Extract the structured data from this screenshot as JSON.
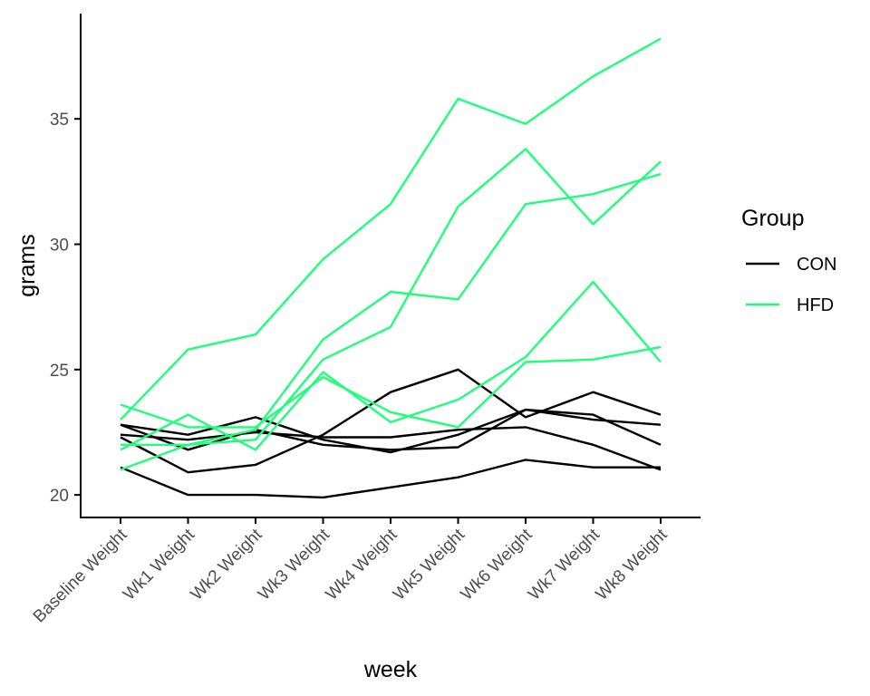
{
  "chart_data": {
    "type": "line",
    "xlabel": "week",
    "ylabel": "grams",
    "categories": [
      "Baseline Weight",
      "Wk1 Weight",
      "Wk2 Weight",
      "Wk3 Weight",
      "Wk4 Weight",
      "Wk5 Weight",
      "Wk6 Weight",
      "Wk7 Weight",
      "Wk8 Weight"
    ],
    "yticks": [
      "20",
      "25",
      "30",
      "35"
    ],
    "ylim": [
      19.1,
      39.2
    ],
    "grid": false,
    "legend": {
      "title": "Group",
      "placement": "right",
      "entries": [
        {
          "label": "CON",
          "color": "#000000"
        },
        {
          "label": "HFD",
          "color": "#1FFF7A"
        }
      ]
    },
    "series": [
      {
        "group": "CON",
        "values": [
          22.8,
          22.4,
          23.1,
          22.2,
          21.7,
          22.4,
          23.4,
          23.2,
          22.0
        ]
      },
      {
        "group": "CON",
        "values": [
          22.8,
          21.8,
          22.6,
          22.0,
          21.8,
          21.9,
          23.4,
          23.0,
          22.8
        ]
      },
      {
        "group": "CON",
        "values": [
          22.4,
          22.2,
          22.5,
          22.3,
          22.3,
          22.6,
          22.7,
          22.0,
          21.0
        ]
      },
      {
        "group": "CON",
        "values": [
          21.1,
          20.0,
          20.0,
          19.9,
          20.3,
          20.7,
          21.4,
          21.1,
          21.1
        ]
      },
      {
        "group": "CON",
        "values": [
          22.3,
          20.9,
          21.2,
          22.4,
          24.1,
          25.0,
          23.1,
          24.1,
          23.2
        ]
      },
      {
        "group": "HFD",
        "values": [
          23.0,
          25.8,
          26.4,
          29.4,
          31.6,
          35.8,
          34.8,
          36.7,
          38.2
        ]
      },
      {
        "group": "HFD",
        "values": [
          22.0,
          22.0,
          22.2,
          25.4,
          26.7,
          31.5,
          33.8,
          30.8,
          33.3
        ]
      },
      {
        "group": "HFD",
        "values": [
          21.0,
          22.0,
          22.6,
          26.2,
          28.1,
          27.8,
          31.6,
          32.0,
          32.8
        ]
      },
      {
        "group": "HFD",
        "values": [
          21.8,
          23.2,
          21.8,
          24.9,
          22.9,
          23.8,
          25.5,
          28.5,
          25.3
        ]
      },
      {
        "group": "HFD",
        "values": [
          23.6,
          22.7,
          22.7,
          24.7,
          23.3,
          22.7,
          25.3,
          25.4,
          25.9
        ]
      }
    ]
  }
}
